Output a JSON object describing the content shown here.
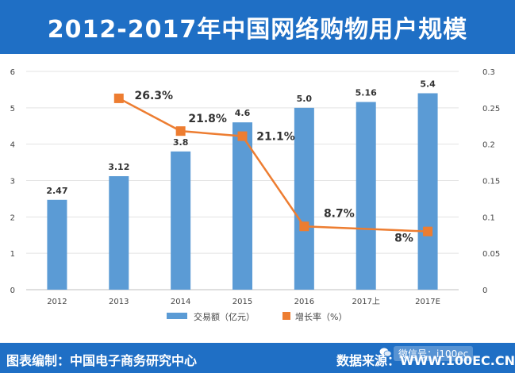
{
  "header": {
    "title": "2012-2017年中国网络购物用户规模"
  },
  "footer": {
    "source_left": "图表编制：中国电子商务研究中心",
    "source_right": "数据来源：WWW.100EC.CN",
    "watermark": "微信号：i100ec"
  },
  "colors": {
    "header_bg": "#1f6fc5",
    "bar": "#5b9bd5",
    "line": "#ed7d31"
  },
  "chart_data": {
    "type": "bar",
    "categories": [
      "2012",
      "2013",
      "2014",
      "2015",
      "2016",
      "2017上",
      "2017E"
    ],
    "series": [
      {
        "name": "交易额（亿元）",
        "type": "bar",
        "axis": "left",
        "values": [
          2.47,
          3.12,
          3.8,
          4.6,
          5.0,
          5.16,
          5.4
        ],
        "labels": [
          "2.47",
          "3.12",
          "3.8",
          "4.6",
          "5.0",
          "5.16",
          "5.4"
        ]
      },
      {
        "name": "增长率（%）",
        "type": "line",
        "axis": "right",
        "values": [
          null,
          0.263,
          0.218,
          0.211,
          0.087,
          null,
          0.08
        ],
        "labels": [
          null,
          "26.3%",
          "21.8%",
          "21.1%",
          "8.7%",
          null,
          "8%"
        ]
      }
    ],
    "ylim_left": [
      0,
      6
    ],
    "ylim_right": [
      0,
      0.3
    ],
    "yticks_left": [
      "0",
      "1",
      "2",
      "3",
      "4",
      "5",
      "6"
    ],
    "yticks_right": [
      "0",
      "0.05",
      "0.1",
      "0.15",
      "0.2",
      "0.25",
      "0.3"
    ],
    "grid": true,
    "legend_position": "bottom"
  }
}
